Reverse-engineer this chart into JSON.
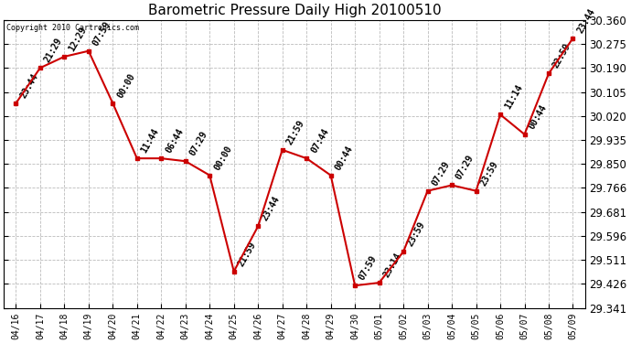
{
  "title": "Barometric Pressure Daily High 20100510",
  "copyright": "Copyright 2010 Cartronics.com",
  "x_labels": [
    "04/16",
    "04/17",
    "04/18",
    "04/19",
    "04/20",
    "04/21",
    "04/22",
    "04/23",
    "04/24",
    "04/25",
    "04/26",
    "04/27",
    "04/28",
    "04/29",
    "04/30",
    "05/01",
    "05/02",
    "05/03",
    "05/04",
    "05/05",
    "05/06",
    "05/07",
    "05/08",
    "05/09"
  ],
  "y_values": [
    30.065,
    30.19,
    30.23,
    30.25,
    30.065,
    29.87,
    29.87,
    29.86,
    29.81,
    29.47,
    29.63,
    29.9,
    29.87,
    29.81,
    29.42,
    29.43,
    29.54,
    29.755,
    29.775,
    29.755,
    30.025,
    29.955,
    30.17,
    30.295
  ],
  "point_labels": [
    "23:44",
    "21:29",
    "12:29",
    "07:59",
    "00:00",
    "11:44",
    "06:44",
    "07:29",
    "00:00",
    "21:59",
    "23:44",
    "21:59",
    "07:44",
    "00:44",
    "07:59",
    "23:14",
    "23:59",
    "07:29",
    "07:29",
    "23:59",
    "11:14",
    "00:44",
    "22:59",
    "23:44"
  ],
  "ylim_min": 29.341,
  "ylim_max": 30.36,
  "yticks": [
    29.341,
    29.426,
    29.511,
    29.596,
    29.681,
    29.766,
    29.85,
    29.935,
    30.02,
    30.105,
    30.19,
    30.275,
    30.36
  ],
  "line_color": "#cc0000",
  "marker_color": "#cc0000",
  "background_color": "#ffffff",
  "grid_color": "#bbbbbb",
  "title_fontsize": 11,
  "label_fontsize": 7,
  "point_label_fontsize": 7,
  "tick_fontsize": 8.5,
  "fig_width": 6.9,
  "fig_height": 3.75,
  "dpi": 100
}
